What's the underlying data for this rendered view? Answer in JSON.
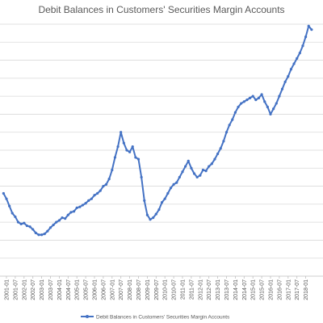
{
  "chart_data": {
    "type": "line",
    "title": "Debit Balances in Customers' Securities Margin Accounts",
    "xlabel": "",
    "ylabel": "",
    "grid": true,
    "legend_position": "bottom",
    "x_tick_labels": [
      "2001-01",
      "2001-07",
      "2002-01",
      "2002-07",
      "2003-01",
      "2003-07",
      "2004-01",
      "2004-07",
      "2005-01",
      "2005-07",
      "2006-01",
      "2006-07",
      "2007-01",
      "2007-07",
      "2008-01",
      "2008-07",
      "2009-01",
      "2009-07",
      "2010-01",
      "2010-07",
      "2011-01",
      "2011-07",
      "2012-01",
      "2012-07",
      "2013-01",
      "2013-07",
      "2014-01",
      "2014-07",
      "2015-01",
      "2015-07",
      "2016-01",
      "2016-07",
      "2017-01",
      "2017-07",
      "2018-01"
    ],
    "series": [
      {
        "name": "Debit Balances in Customers' Securities Margin Accounts",
        "color": "#4472c4",
        "x": [
          "2000-11",
          "2001-01",
          "2001-03",
          "2001-05",
          "2001-07",
          "2001-09",
          "2001-11",
          "2002-01",
          "2002-03",
          "2002-05",
          "2002-07",
          "2002-09",
          "2002-11",
          "2003-01",
          "2003-03",
          "2003-05",
          "2003-07",
          "2003-09",
          "2003-11",
          "2004-01",
          "2004-03",
          "2004-05",
          "2004-07",
          "2004-09",
          "2004-11",
          "2005-01",
          "2005-03",
          "2005-05",
          "2005-07",
          "2005-09",
          "2005-11",
          "2006-01",
          "2006-03",
          "2006-05",
          "2006-07",
          "2006-09",
          "2006-11",
          "2007-01",
          "2007-03",
          "2007-05",
          "2007-07",
          "2007-09",
          "2007-11",
          "2008-01",
          "2008-03",
          "2008-05",
          "2008-07",
          "2008-09",
          "2008-11",
          "2009-01",
          "2009-03",
          "2009-05",
          "2009-07",
          "2009-09",
          "2009-11",
          "2010-01",
          "2010-03",
          "2010-05",
          "2010-07",
          "2010-09",
          "2010-11",
          "2011-01",
          "2011-03",
          "2011-05",
          "2011-07",
          "2011-09",
          "2011-11",
          "2012-01",
          "2012-03",
          "2012-05",
          "2012-07",
          "2012-09",
          "2012-11",
          "2013-01",
          "2013-03",
          "2013-05",
          "2013-07",
          "2013-09",
          "2013-11",
          "2014-01",
          "2014-03",
          "2014-05",
          "2014-07",
          "2014-09",
          "2014-11",
          "2015-01",
          "2015-03",
          "2015-05",
          "2015-07",
          "2015-09",
          "2015-11",
          "2016-01",
          "2016-03",
          "2016-05",
          "2016-07",
          "2016-09",
          "2016-11",
          "2017-01",
          "2017-03",
          "2017-05",
          "2017-07",
          "2017-09",
          "2017-11",
          "2018-01",
          "2018-03",
          "2018-05"
        ],
        "values": [
          4.6,
          4.3,
          3.9,
          3.5,
          3.3,
          3.0,
          2.9,
          2.95,
          2.8,
          2.75,
          2.6,
          2.4,
          2.3,
          2.3,
          2.35,
          2.5,
          2.7,
          2.85,
          3.0,
          3.1,
          3.25,
          3.2,
          3.4,
          3.55,
          3.6,
          3.8,
          3.85,
          3.95,
          4.05,
          4.2,
          4.3,
          4.5,
          4.6,
          4.75,
          5.0,
          5.1,
          5.4,
          5.9,
          6.6,
          7.2,
          8.0,
          7.4,
          7.0,
          6.9,
          7.2,
          6.6,
          6.5,
          5.5,
          4.2,
          3.4,
          3.15,
          3.25,
          3.45,
          3.7,
          4.1,
          4.3,
          4.6,
          4.9,
          5.1,
          5.2,
          5.5,
          5.8,
          6.1,
          6.4,
          6.0,
          5.7,
          5.5,
          5.6,
          5.9,
          5.85,
          6.1,
          6.25,
          6.5,
          6.8,
          7.1,
          7.5,
          8.0,
          8.4,
          8.7,
          9.1,
          9.4,
          9.6,
          9.7,
          9.8,
          9.9,
          10.0,
          9.8,
          9.9,
          10.1,
          9.7,
          9.4,
          9.0,
          9.3,
          9.6,
          10.0,
          10.4,
          10.8,
          11.1,
          11.5,
          11.8,
          12.1,
          12.4,
          12.8,
          13.3,
          13.9,
          13.7
        ]
      }
    ],
    "ylim": [
      0,
      14
    ]
  }
}
